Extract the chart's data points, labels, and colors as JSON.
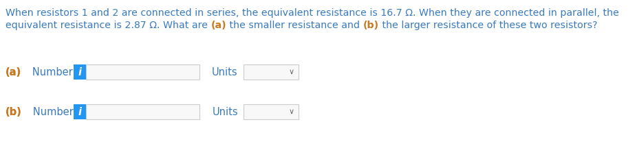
{
  "background_color": "#ffffff",
  "text_color": "#3a7abf",
  "bold_color": "#c87820",
  "label_color_ab": "#c87820",
  "label_color_number": "#3a7abf",
  "info_button_color": "#2196F3",
  "info_button_text": "i",
  "info_button_text_color": "#ffffff",
  "input_box_border": "#cccccc",
  "dropdown_box_border": "#cccccc",
  "line1": "When resistors 1 and 2 are connected in series, the equivalent resistance is 16.7 Ω. When they are connected in parallel, the",
  "line2_parts": [
    [
      "equivalent resistance is 2.87 Ω. What are ",
      false
    ],
    [
      "(a)",
      true
    ],
    [
      " the smaller resistance and ",
      false
    ],
    [
      "(b)",
      true
    ],
    [
      " the larger resistance of these two resistors?",
      false
    ]
  ],
  "row_a_ab": "(a)",
  "row_b_ab": "(b)",
  "row_number": "   Number",
  "units_label": "Units",
  "font_size_text": 10.2,
  "font_size_label": 10.5,
  "font_size_units": 10.5,
  "font_size_info": 10.5,
  "font_size_chevron": 8
}
